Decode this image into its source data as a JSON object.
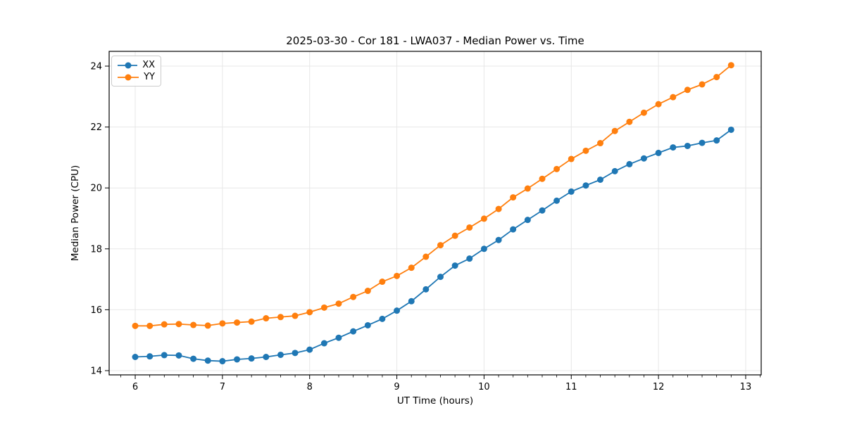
{
  "figure": {
    "background": "#ffffff"
  },
  "chart_data": {
    "type": "line",
    "title": "2025-03-30 - Cor 181 - LWA037 - Median Power vs. Time",
    "xlabel": "UT Time (hours)",
    "ylabel": "Median Power (CPU)",
    "xlim": [
      5.701,
      13.178
    ],
    "ylim": [
      13.861,
      24.485
    ],
    "xticks": [
      6,
      7,
      8,
      9,
      10,
      11,
      12,
      13
    ],
    "yticks": [
      14,
      16,
      18,
      20,
      22,
      24
    ],
    "x_minor_tick_step_hours": 0.1667,
    "grid": true,
    "grid_color": "#e7e7e7",
    "legend_position": "upper-left",
    "x": [
      6.0,
      6.167,
      6.333,
      6.5,
      6.667,
      6.833,
      7.0,
      7.167,
      7.333,
      7.5,
      7.667,
      7.833,
      8.0,
      8.167,
      8.333,
      8.5,
      8.667,
      8.833,
      9.0,
      9.167,
      9.333,
      9.5,
      9.667,
      9.833,
      10.0,
      10.167,
      10.333,
      10.5,
      10.667,
      10.833,
      11.0,
      11.167,
      11.333,
      11.5,
      11.667,
      11.833,
      12.0,
      12.167,
      12.333,
      12.5,
      12.667,
      12.833
    ],
    "series": [
      {
        "name": "XX",
        "color": "#1f77b4",
        "marker": "circle",
        "values": [
          14.45,
          14.47,
          14.51,
          14.5,
          14.39,
          14.33,
          14.31,
          14.37,
          14.4,
          14.45,
          14.52,
          14.58,
          14.69,
          14.9,
          15.08,
          15.29,
          15.49,
          15.7,
          15.97,
          16.28,
          16.67,
          17.08,
          17.45,
          17.68,
          18.0,
          18.29,
          18.64,
          18.95,
          19.26,
          19.58,
          19.88,
          20.08,
          20.27,
          20.55,
          20.78,
          20.97,
          21.15,
          21.33,
          21.38,
          21.48,
          21.56,
          21.91
        ]
      },
      {
        "name": "YY",
        "color": "#ff7f0e",
        "marker": "circle",
        "values": [
          15.47,
          15.47,
          15.52,
          15.53,
          15.5,
          15.48,
          15.55,
          15.58,
          15.61,
          15.72,
          15.76,
          15.8,
          15.92,
          16.07,
          16.2,
          16.42,
          16.62,
          16.92,
          17.11,
          17.38,
          17.74,
          18.12,
          18.43,
          18.7,
          18.99,
          19.31,
          19.69,
          19.98,
          20.3,
          20.62,
          20.95,
          21.22,
          21.47,
          21.87,
          22.17,
          22.47,
          22.75,
          22.98,
          23.22,
          23.4,
          23.64,
          24.03
        ]
      }
    ]
  }
}
